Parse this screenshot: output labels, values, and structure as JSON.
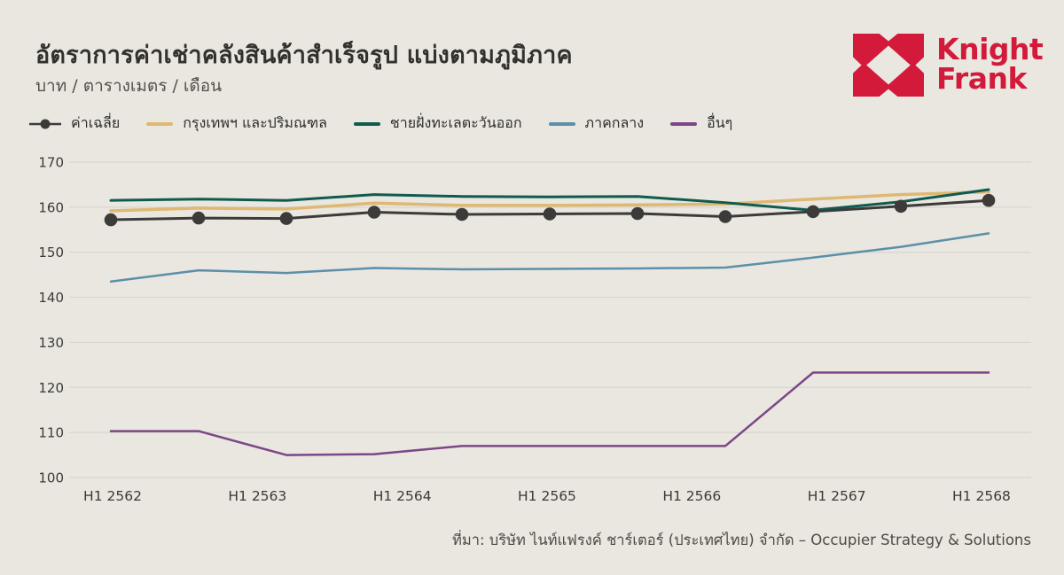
{
  "header": {
    "title": "อัตราการค่าเช่าคลังสินค้าสำเร็จรูป แบ่งตามภูมิภาค",
    "subtitle": "บาท / ตารางเมตร / เดือน"
  },
  "logo": {
    "line1": "Knight",
    "line2": "Frank",
    "brand_color": "#D31A3B"
  },
  "source": "ที่มา: บริษัท ไนท์แฟรงค์ ชาร์เตอร์ (ประเทศไทย) จำกัด – Occupier Strategy & Solutions",
  "colors": {
    "background": "#E9E7DF",
    "gridline": "#D8D6CE",
    "axis_text": "#3B3A36"
  },
  "chart_data": {
    "type": "line",
    "title": "อัตราการค่าเช่าคลังสินค้าสำเร็จรูป แบ่งตามภูมิภาค",
    "unit_label": "บาท / ตารางเมตร / เดือน",
    "x_tick_labels": [
      "H1 2562",
      "H1 2563",
      "H1 2564",
      "H1 2565",
      "H1 2566",
      "H1 2567",
      "H1 2568"
    ],
    "n_points": 11,
    "y_axis": {
      "min": 100,
      "max": 170,
      "step": 10
    },
    "grid": "horizontal",
    "legend_position": "top-left",
    "series": [
      {
        "name": "ค่าเฉลี่ย",
        "color": "#3D3B3A",
        "marker": true,
        "width": 3,
        "values": [
          157.2,
          157.6,
          157.5,
          158.9,
          158.4,
          158.5,
          158.6,
          157.9,
          159.0,
          160.2,
          161.5
        ]
      },
      {
        "name": "กรุงเทพฯ และปริมณฑล",
        "color": "#DFB873",
        "marker": false,
        "width": 3.5,
        "values": [
          159.2,
          159.8,
          159.6,
          160.9,
          160.4,
          160.4,
          160.5,
          160.7,
          161.8,
          162.8,
          163.4
        ]
      },
      {
        "name": "ชายฝั่งทะเลตะวันออก",
        "color": "#0F5B4F",
        "marker": false,
        "width": 3,
        "values": [
          161.5,
          161.8,
          161.5,
          162.8,
          162.4,
          162.3,
          162.4,
          161.0,
          159.3,
          161.2,
          163.9
        ]
      },
      {
        "name": "ภาคกลาง",
        "color": "#5C8FA9",
        "marker": false,
        "width": 2.5,
        "values": [
          143.5,
          146.0,
          145.4,
          146.5,
          146.2,
          146.3,
          146.4,
          146.6,
          148.8,
          151.2,
          154.2
        ]
      },
      {
        "name": "อื่นๆ",
        "color": "#7C4687",
        "marker": false,
        "width": 2.5,
        "values": [
          110.3,
          110.3,
          105.0,
          105.2,
          107.0,
          107.0,
          107.0,
          107.0,
          123.3,
          123.3,
          123.3
        ]
      }
    ]
  }
}
